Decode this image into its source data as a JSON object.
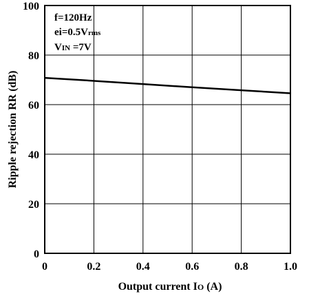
{
  "chart_data": {
    "type": "line",
    "x": [
      0,
      0.2,
      0.4,
      0.6,
      0.8,
      1.0
    ],
    "series": [
      {
        "values": [
          70.8,
          69.6,
          68.3,
          67.0,
          65.8,
          64.6
        ]
      }
    ],
    "xlim": [
      0,
      1.0
    ],
    "ylim": [
      0,
      100
    ],
    "x_ticks": [
      "0",
      "0.2",
      "0.4",
      "0.6",
      "0.8",
      "1.0"
    ],
    "y_ticks": [
      "0",
      "20",
      "40",
      "60",
      "80",
      "100"
    ],
    "xlabel": {
      "main": "Output current I",
      "sub": "O",
      "unit": " (A)"
    },
    "ylabel": "Ripple rejection RR (dB)",
    "grid": true,
    "conditions": [
      {
        "main": "f=120Hz",
        "sub": ""
      },
      {
        "main": "ei=0.5V",
        "sub": "rms"
      },
      {
        "main": "V",
        "sub": "IN",
        "suffix": " =7V"
      }
    ],
    "line_color": "#000000"
  }
}
